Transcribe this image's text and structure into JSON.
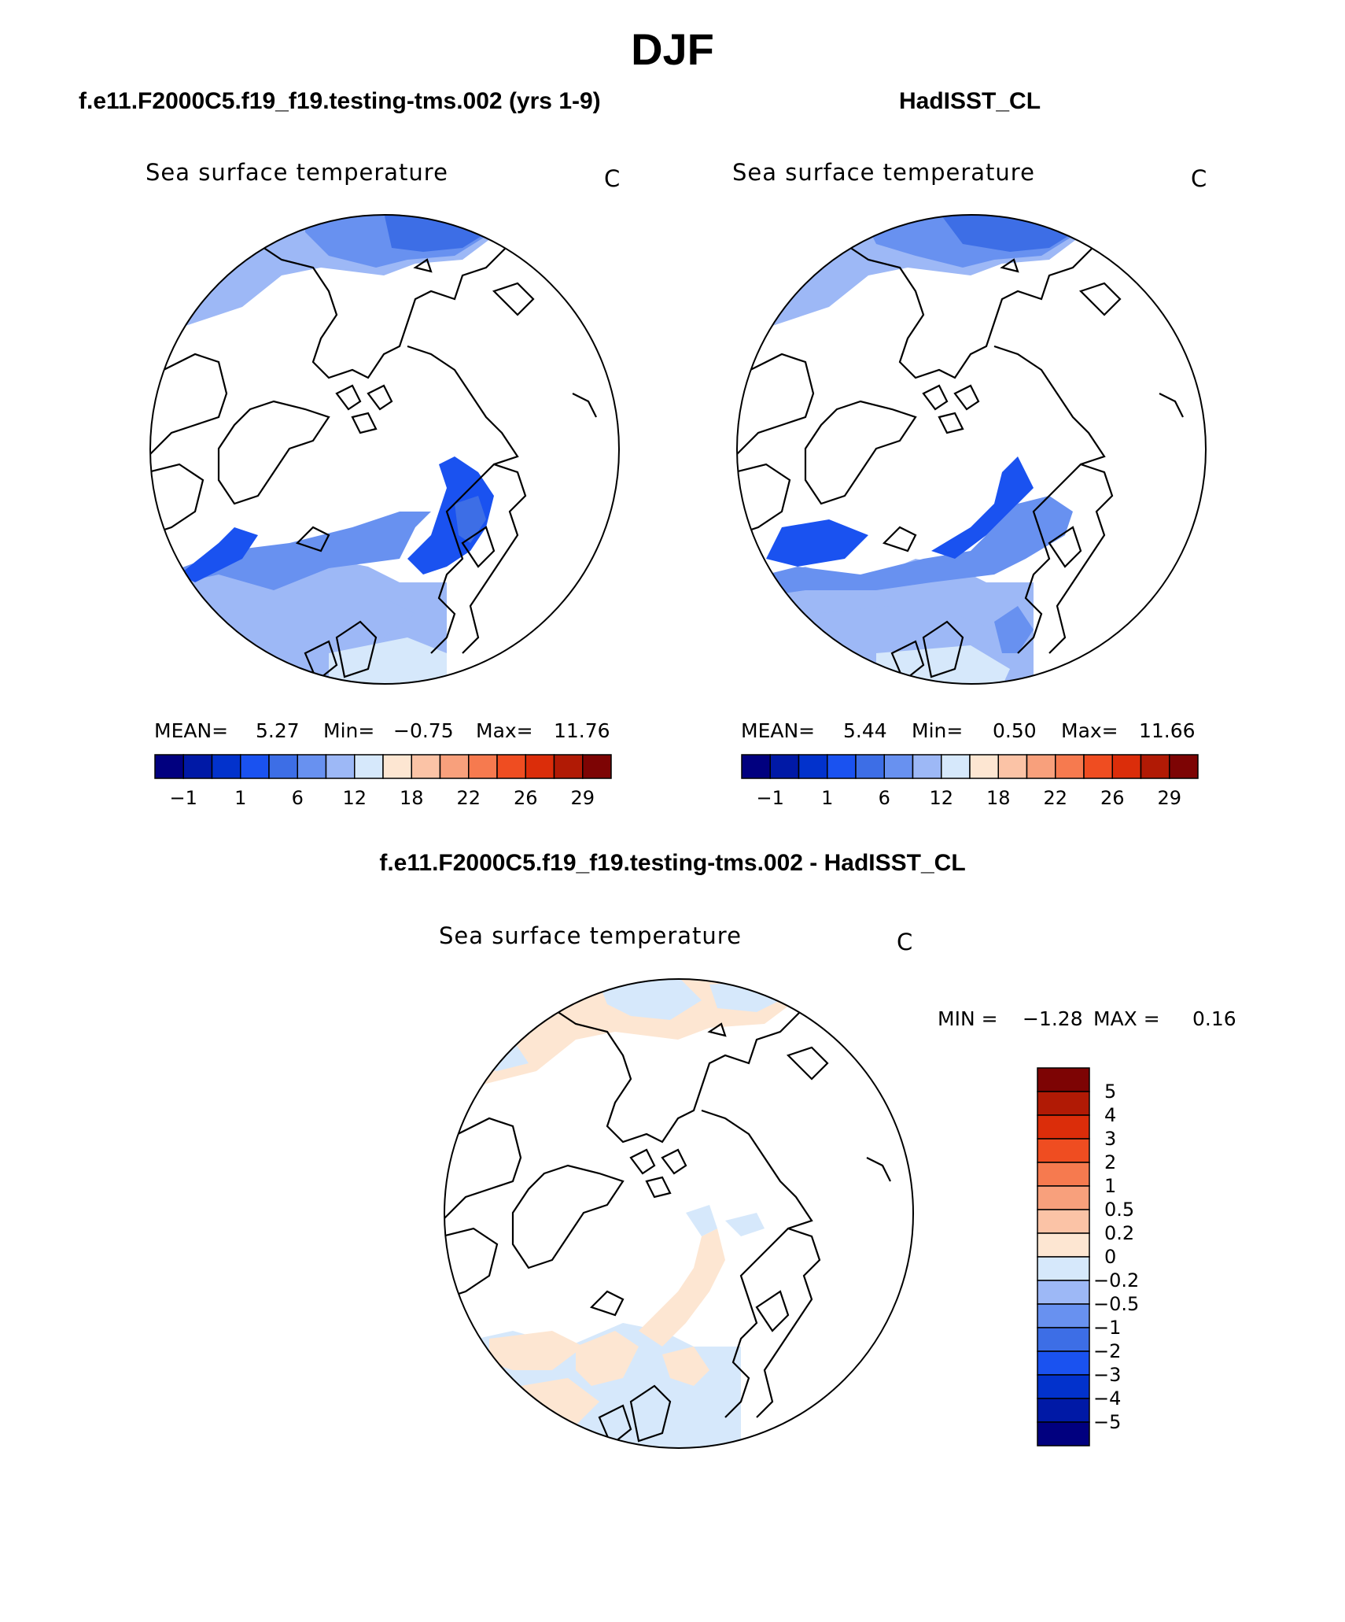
{
  "page": {
    "title": "DJF",
    "left_header": "f.e11.F2000C5.f19_f19.testing-tms.002 (yrs 1-9)",
    "right_header": "HadISST_CL",
    "diff_header": "f.e11.F2000C5.f19_f19.testing-tms.002 - HadISST_CL"
  },
  "panels": [
    {
      "variable": "Sea surface temperature",
      "units": "C",
      "stats": {
        "mean_label": "MEAN=",
        "mean": "5.27",
        "min_label": "Min=",
        "min": "−0.75",
        "max_label": "Max=",
        "max": "11.76"
      }
    },
    {
      "variable": "Sea surface temperature",
      "units": "C",
      "stats": {
        "mean_label": "MEAN=",
        "mean": "5.44",
        "min_label": "Min=",
        "min": "0.50",
        "max_label": "Max=",
        "max": "11.66"
      }
    }
  ],
  "diff_panel": {
    "variable": "Sea surface temperature",
    "units": "C",
    "min_label": "MIN =",
    "min": "−1.28",
    "max_label": "MAX =",
    "max": "0.16"
  },
  "colorbar_horizontal": {
    "colors": [
      "#01007f",
      "#0019a6",
      "#0232cc",
      "#1a52f0",
      "#3d6ee6",
      "#6891f0",
      "#9db8f6",
      "#d6e8fb",
      "#fde6d2",
      "#fbc3a6",
      "#f8a07c",
      "#f67a4f",
      "#ef4d21",
      "#db2d0a",
      "#b11a05",
      "#7d0404"
    ],
    "labels": [
      "−1",
      "1",
      "6",
      "12",
      "18",
      "22",
      "26",
      "29"
    ]
  },
  "colorbar_vertical": {
    "colors_top_to_bottom": [
      "#7d0404",
      "#b11a05",
      "#db2d0a",
      "#ef4d21",
      "#f67a4f",
      "#f8a07c",
      "#fbc3a6",
      "#fde6d2",
      "#d6e8fb",
      "#9db8f6",
      "#6891f0",
      "#3d6ee6",
      "#1a52f0",
      "#0232cc",
      "#0019a6",
      "#01007f"
    ],
    "labels_top_to_bottom": [
      "5",
      "4",
      "3",
      "2",
      "1",
      "0.5",
      "0.2",
      "0",
      "−0.2",
      "−0.5",
      "−1",
      "−2",
      "−3",
      "−4",
      "−5"
    ]
  }
}
